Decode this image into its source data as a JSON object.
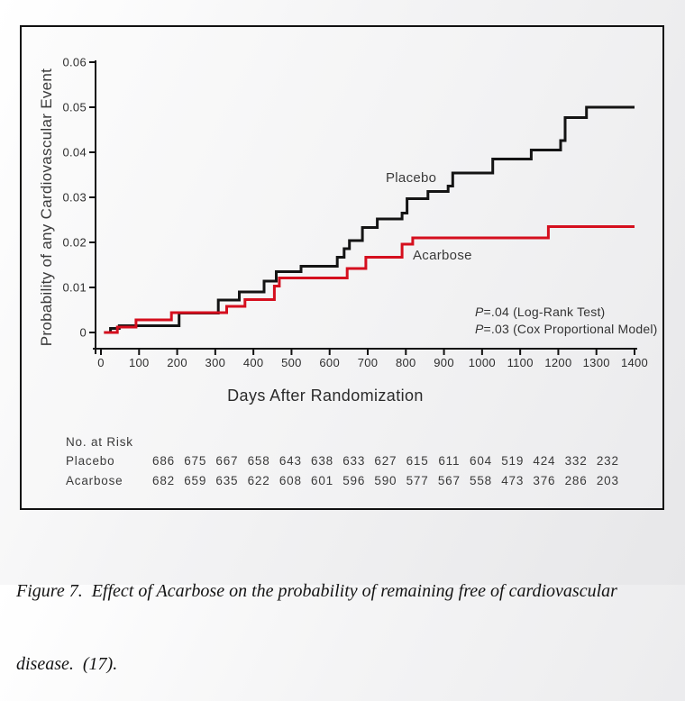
{
  "chart_data": {
    "type": "line",
    "subtype": "kaplan-meier-step",
    "xlabel": "Days After Randomization",
    "ylabel": "Probability of any Cardiovascular Event",
    "xlim": [
      0,
      1400
    ],
    "ylim": [
      0,
      0.06
    ],
    "grid": false,
    "legend_position": "inline-labels",
    "x_ticks": [
      0,
      100,
      200,
      300,
      400,
      500,
      600,
      700,
      800,
      900,
      1000,
      1100,
      1200,
      1300,
      1400
    ],
    "y_ticks": [
      0,
      0.01,
      0.02,
      0.03,
      0.04,
      0.05,
      0.06
    ],
    "y_tick_labels": [
      "0",
      "0.01",
      "0.02",
      "0.03",
      "0.04",
      "0.05",
      "0.06"
    ],
    "axis_color": "#111111",
    "series": [
      {
        "name": "Placebo",
        "color": "#141414",
        "points": [
          [
            8,
            0
          ],
          [
            25,
            0.0009
          ],
          [
            48,
            0.0015
          ],
          [
            205,
            0.0043
          ],
          [
            308,
            0.0072
          ],
          [
            363,
            0.009
          ],
          [
            428,
            0.0114
          ],
          [
            460,
            0.0135
          ],
          [
            525,
            0.0147
          ],
          [
            620,
            0.0167
          ],
          [
            638,
            0.0186
          ],
          [
            652,
            0.0204
          ],
          [
            686,
            0.0233
          ],
          [
            725,
            0.0252
          ],
          [
            790,
            0.0265
          ],
          [
            803,
            0.0297
          ],
          [
            858,
            0.0313
          ],
          [
            911,
            0.0325
          ],
          [
            923,
            0.0354
          ],
          [
            1028,
            0.0385
          ],
          [
            1129,
            0.0405
          ],
          [
            1206,
            0.0426
          ],
          [
            1218,
            0.0477
          ],
          [
            1274,
            0.05
          ],
          [
            1400,
            0.05
          ]
        ]
      },
      {
        "name": "Acarbose",
        "color": "#d50f1e",
        "points": [
          [
            8,
            0
          ],
          [
            43,
            0.0012
          ],
          [
            92,
            0.0028
          ],
          [
            185,
            0.0044
          ],
          [
            330,
            0.0058
          ],
          [
            378,
            0.0073
          ],
          [
            455,
            0.0103
          ],
          [
            468,
            0.0121
          ],
          [
            646,
            0.0142
          ],
          [
            695,
            0.0167
          ],
          [
            790,
            0.0196
          ],
          [
            818,
            0.021
          ],
          [
            1174,
            0.0235
          ],
          [
            1400,
            0.0235
          ]
        ]
      }
    ],
    "annotations": [
      "P=.04 (Log-Rank Test)",
      "P=.03 (Cox Proportional Model)"
    ],
    "risk_table": {
      "header": "No. at Risk",
      "rows": [
        {
          "label": "Placebo",
          "values": [
            "686",
            "675",
            "667",
            "658",
            "643",
            "638",
            "633",
            "627",
            "615",
            "611",
            "604",
            "519",
            "424",
            "332",
            "232"
          ]
        },
        {
          "label": "Acarbose",
          "values": [
            "682",
            "659",
            "635",
            "622",
            "608",
            "601",
            "596",
            "590",
            "577",
            "567",
            "558",
            "473",
            "376",
            "286",
            "203"
          ]
        }
      ]
    }
  },
  "caption": {
    "line1": "Figure 7.  Effect of Acarbose on the probability of remaining free of cardiovascular",
    "line2": "disease.  (17)."
  }
}
